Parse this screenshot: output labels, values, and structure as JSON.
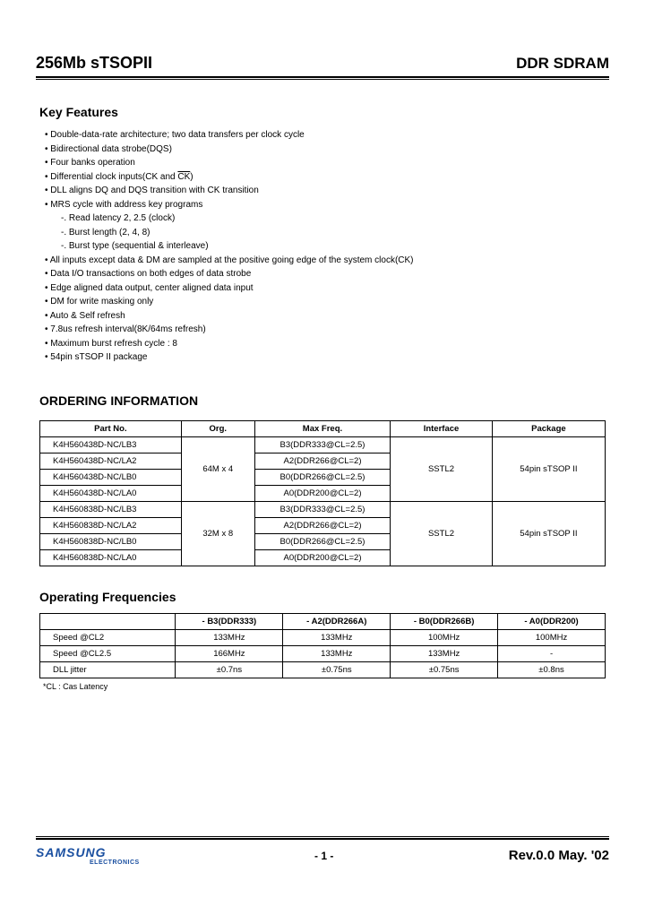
{
  "header": {
    "left": "256Mb sTSOPII",
    "right": "DDR SDRAM"
  },
  "features": {
    "title": "Key Features",
    "items": [
      "Double-data-rate architecture; two data transfers per clock cycle",
      "Bidirectional data strobe(DQS)",
      "Four banks operation",
      "__DIFFCLK__",
      "DLL aligns DQ and DQS transition with CK transition",
      "MRS cycle with address key programs",
      "All inputs except data & DM are sampled at the positive going edge of the system clock(CK)",
      "Data I/O transactions on both edges of data strobe",
      "Edge aligned data output, center aligned data input",
      "DM for write masking only",
      "Auto & Self refresh",
      "7.8us refresh interval(8K/64ms refresh)",
      "Maximum burst refresh cycle : 8",
      "54pin sTSOP II package"
    ],
    "sub": [
      "Read latency  2, 2.5 (clock)",
      "Burst length (2, 4, 8)",
      "Burst type (sequential & interleave)"
    ],
    "diffclk_prefix": "Differential clock inputs(CK and ",
    "diffclk_over": "CK",
    "diffclk_suffix": ")"
  },
  "ordering": {
    "title": "ORDERING INFORMATION",
    "headers": [
      "Part No.",
      "Org.",
      "Max Freq.",
      "Interface",
      "Package"
    ],
    "groups": [
      {
        "org": "64M x 4",
        "interface": "SSTL2",
        "package": "54pin sTSOP II",
        "rows": [
          {
            "part": "K4H560438D-NC/LB3",
            "freq": "B3(DDR333@CL=2.5)"
          },
          {
            "part": "K4H560438D-NC/LA2",
            "freq": "A2(DDR266@CL=2)"
          },
          {
            "part": "K4H560438D-NC/LB0",
            "freq": "B0(DDR266@CL=2.5)"
          },
          {
            "part": "K4H560438D-NC/LA0",
            "freq": "A0(DDR200@CL=2)"
          }
        ]
      },
      {
        "org": "32M x 8",
        "interface": "SSTL2",
        "package": "54pin sTSOP II",
        "rows": [
          {
            "part": "K4H560838D-NC/LB3",
            "freq": "B3(DDR333@CL=2.5)"
          },
          {
            "part": "K4H560838D-NC/LA2",
            "freq": "A2(DDR266@CL=2)"
          },
          {
            "part": "K4H560838D-NC/LB0",
            "freq": "B0(DDR266@CL=2.5)"
          },
          {
            "part": "K4H560838D-NC/LA0",
            "freq": "A0(DDR200@CL=2)"
          }
        ]
      }
    ]
  },
  "freq": {
    "title": "Operating Frequencies",
    "headers": [
      "",
      "- B3(DDR333)",
      "- A2(DDR266A)",
      "- B0(DDR266B)",
      "- A0(DDR200)"
    ],
    "rows": [
      {
        "label": "Speed @CL2",
        "c": [
          "133MHz",
          "133MHz",
          "100MHz",
          "100MHz"
        ]
      },
      {
        "label": "Speed @CL2.5",
        "c": [
          "166MHz",
          "133MHz",
          "133MHz",
          "-"
        ]
      },
      {
        "label": "DLL jitter",
        "c": [
          "±0.7ns",
          "±0.75ns",
          "±0.75ns",
          "±0.8ns"
        ]
      }
    ],
    "footnote": "*CL : Cas Latency"
  },
  "footer": {
    "logo": "SAMSUNG",
    "logo_sub": "ELECTRONICS",
    "page": "- 1 -",
    "rev": "Rev.0.0  May. '02"
  }
}
